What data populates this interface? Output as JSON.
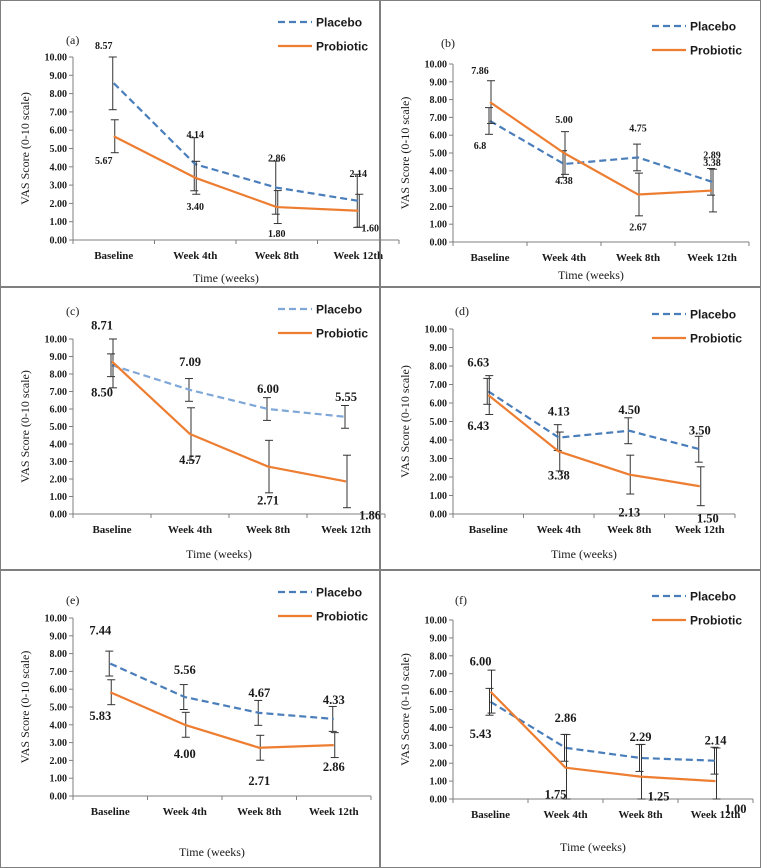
{
  "colors": {
    "placebo": "#4a7ebb",
    "placebo_light": "#7fa7d8",
    "probiotic": "#ed7d31",
    "error_bar": "#333333",
    "axis": "#7f7f7f",
    "border": "#7f7f7f"
  },
  "chart_data": [
    {
      "id": "a",
      "panel_label": "(a)",
      "type": "line",
      "categories": [
        "Baseline",
        "Week 4th",
        "Week 8th",
        "Week 12th"
      ],
      "xlabel": "Time (weeks)",
      "ylabel": "VAS Score (0-10 scale)",
      "ylim": [
        0,
        10
      ],
      "ytick_step": 1,
      "ytick_labels": [
        "0.00",
        "1.00",
        "2.00",
        "3.00",
        "4.00",
        "5.00",
        "6.00",
        "7.00",
        "8.00",
        "9.00",
        "10.00"
      ],
      "series": [
        {
          "name": "Placebo",
          "style": "dashed",
          "values": [
            8.57,
            4.14,
            2.86,
            2.14
          ],
          "errors": [
            1.45,
            1.45,
            1.45,
            1.45
          ],
          "value_labels": [
            "8.57",
            "4.14",
            "2.86",
            "2.14"
          ]
        },
        {
          "name": "Probiotic",
          "style": "solid",
          "values": [
            5.67,
            3.4,
            1.8,
            1.6
          ],
          "errors": [
            0.9,
            0.9,
            0.9,
            0.9
          ],
          "value_labels": [
            "5.67",
            "3.40",
            "1.80",
            "1.60"
          ]
        }
      ]
    },
    {
      "id": "b",
      "panel_label": "(b)",
      "type": "line",
      "categories": [
        "Baseline",
        "Week 4th",
        "Week 8th",
        "Week 12th"
      ],
      "xlabel": "Time (weeks)",
      "ylabel": "VAS Score (0-10 scale)",
      "ylim": [
        0,
        10
      ],
      "ytick_step": 1,
      "ytick_labels": [
        "0.00",
        "1.00",
        "2.00",
        "3.00",
        "4.00",
        "5.00",
        "6.00",
        "7.00",
        "8.00",
        "9.00",
        "10.00"
      ],
      "series": [
        {
          "name": "Placebo",
          "style": "dashed",
          "values": [
            6.8,
            4.38,
            4.75,
            3.38
          ],
          "errors": [
            0.75,
            0.75,
            0.75,
            0.75
          ],
          "value_labels": [
            "6.8",
            "4.38",
            "4.75",
            "3.38"
          ]
        },
        {
          "name": "Probiotic",
          "style": "solid",
          "values": [
            7.86,
            5.0,
            2.67,
            2.89
          ],
          "errors": [
            1.2,
            1.2,
            1.2,
            1.2
          ],
          "value_labels": [
            "7.86",
            "5.00",
            "2.67",
            "2.89"
          ]
        }
      ]
    },
    {
      "id": "c",
      "panel_label": "(c)",
      "type": "line",
      "categories": [
        "Baseline",
        "Week 4th",
        "Week 8th",
        "Week 12th"
      ],
      "xlabel": "Time (weeks)",
      "ylabel": "VAS Score (0-10 scale)",
      "ylim": [
        0,
        10
      ],
      "ytick_step": 1,
      "ytick_labels": [
        "0.00",
        "1.00",
        "2.00",
        "3.00",
        "4.00",
        "5.00",
        "6.00",
        "7.00",
        "8.00",
        "9.00",
        "10.00"
      ],
      "series": [
        {
          "name": "Placebo",
          "style": "dashed-light",
          "values": [
            8.5,
            7.09,
            6.0,
            5.55
          ],
          "errors": [
            0.65,
            0.65,
            0.65,
            0.65
          ],
          "value_labels": [
            "8.50",
            "7.09",
            "6.00",
            "5.55"
          ]
        },
        {
          "name": "Probiotic",
          "style": "solid",
          "values": [
            8.71,
            4.57,
            2.71,
            1.86
          ],
          "errors": [
            1.5,
            1.5,
            1.5,
            1.5
          ],
          "value_labels": [
            "8.71",
            "4.57",
            "2.71",
            "1.86"
          ]
        }
      ]
    },
    {
      "id": "d",
      "panel_label": "(d)",
      "type": "line",
      "categories": [
        "Baseline",
        "Week 4th",
        "Week 8th",
        "Week 12th"
      ],
      "xlabel": "Time (weeks)",
      "ylabel": "VAS Score (0-10 scale)",
      "ylim": [
        0,
        10
      ],
      "ytick_step": 1,
      "ytick_labels": [
        "0.00",
        "1.00",
        "2.00",
        "3.00",
        "4.00",
        "5.00",
        "6.00",
        "7.00",
        "8.00",
        "9.00",
        "10.00"
      ],
      "series": [
        {
          "name": "Placebo",
          "style": "dashed",
          "values": [
            6.63,
            4.13,
            4.5,
            3.5
          ],
          "errors": [
            0.7,
            0.7,
            0.7,
            0.7
          ],
          "value_labels": [
            "6.63",
            "4.13",
            "4.50",
            "3.50"
          ]
        },
        {
          "name": "Probiotic",
          "style": "solid",
          "values": [
            6.43,
            3.38,
            2.13,
            1.5
          ],
          "errors": [
            1.05,
            1.05,
            1.05,
            1.05
          ],
          "value_labels": [
            "6.43",
            "3.38",
            "2.13",
            "1.50"
          ]
        }
      ]
    },
    {
      "id": "e",
      "panel_label": "(e)",
      "type": "line",
      "categories": [
        "Baseline",
        "Week 4th",
        "Week 8th",
        "Week 12th"
      ],
      "xlabel": "Time (weeks)",
      "ylabel": "VAS Score (0-10 scale)",
      "ylim": [
        0,
        10
      ],
      "ytick_step": 1,
      "ytick_labels": [
        "0.00",
        "1.00",
        "2.00",
        "3.00",
        "4.00",
        "5.00",
        "6.00",
        "7.00",
        "8.00",
        "9.00",
        "10.00"
      ],
      "series": [
        {
          "name": "Placebo",
          "style": "dashed",
          "values": [
            7.44,
            5.56,
            4.67,
            4.33
          ],
          "errors": [
            0.7,
            0.7,
            0.7,
            0.7
          ],
          "value_labels": [
            "7.44",
            "5.56",
            "4.67",
            "4.33"
          ]
        },
        {
          "name": "Probiotic",
          "style": "solid",
          "values": [
            5.83,
            4.0,
            2.71,
            2.86
          ],
          "errors": [
            0.7,
            0.7,
            0.7,
            0.7
          ],
          "value_labels": [
            "5.83",
            "4.00",
            "2.71",
            "2.86"
          ]
        }
      ]
    },
    {
      "id": "f",
      "panel_label": "(f)",
      "type": "line",
      "categories": [
        "Baseline",
        "Week 4th",
        "Week 8th",
        "Week 12th"
      ],
      "xlabel": "Time (weeks)",
      "ylabel": "VAS Score (0-10 scale)",
      "ylim": [
        0,
        10
      ],
      "ytick_step": 1,
      "ytick_labels": [
        "0.00",
        "1.00",
        "2.00",
        "3.00",
        "4.00",
        "5.00",
        "6.00",
        "7.00",
        "8.00",
        "9.00",
        "10.00"
      ],
      "series": [
        {
          "name": "Placebo",
          "style": "dashed",
          "values": [
            5.43,
            2.86,
            2.29,
            2.14
          ],
          "errors": [
            0.75,
            0.75,
            0.75,
            0.75
          ],
          "value_labels": [
            "5.43",
            "2.86",
            "2.29",
            "2.14"
          ]
        },
        {
          "name": "Probiotic",
          "style": "solid",
          "values": [
            6.0,
            1.75,
            1.25,
            1.0
          ],
          "errors": [
            1.2,
            1.85,
            1.8,
            1.85
          ],
          "value_labels": [
            "6.00",
            "1.75",
            "1.25",
            "1.00"
          ]
        }
      ]
    }
  ]
}
